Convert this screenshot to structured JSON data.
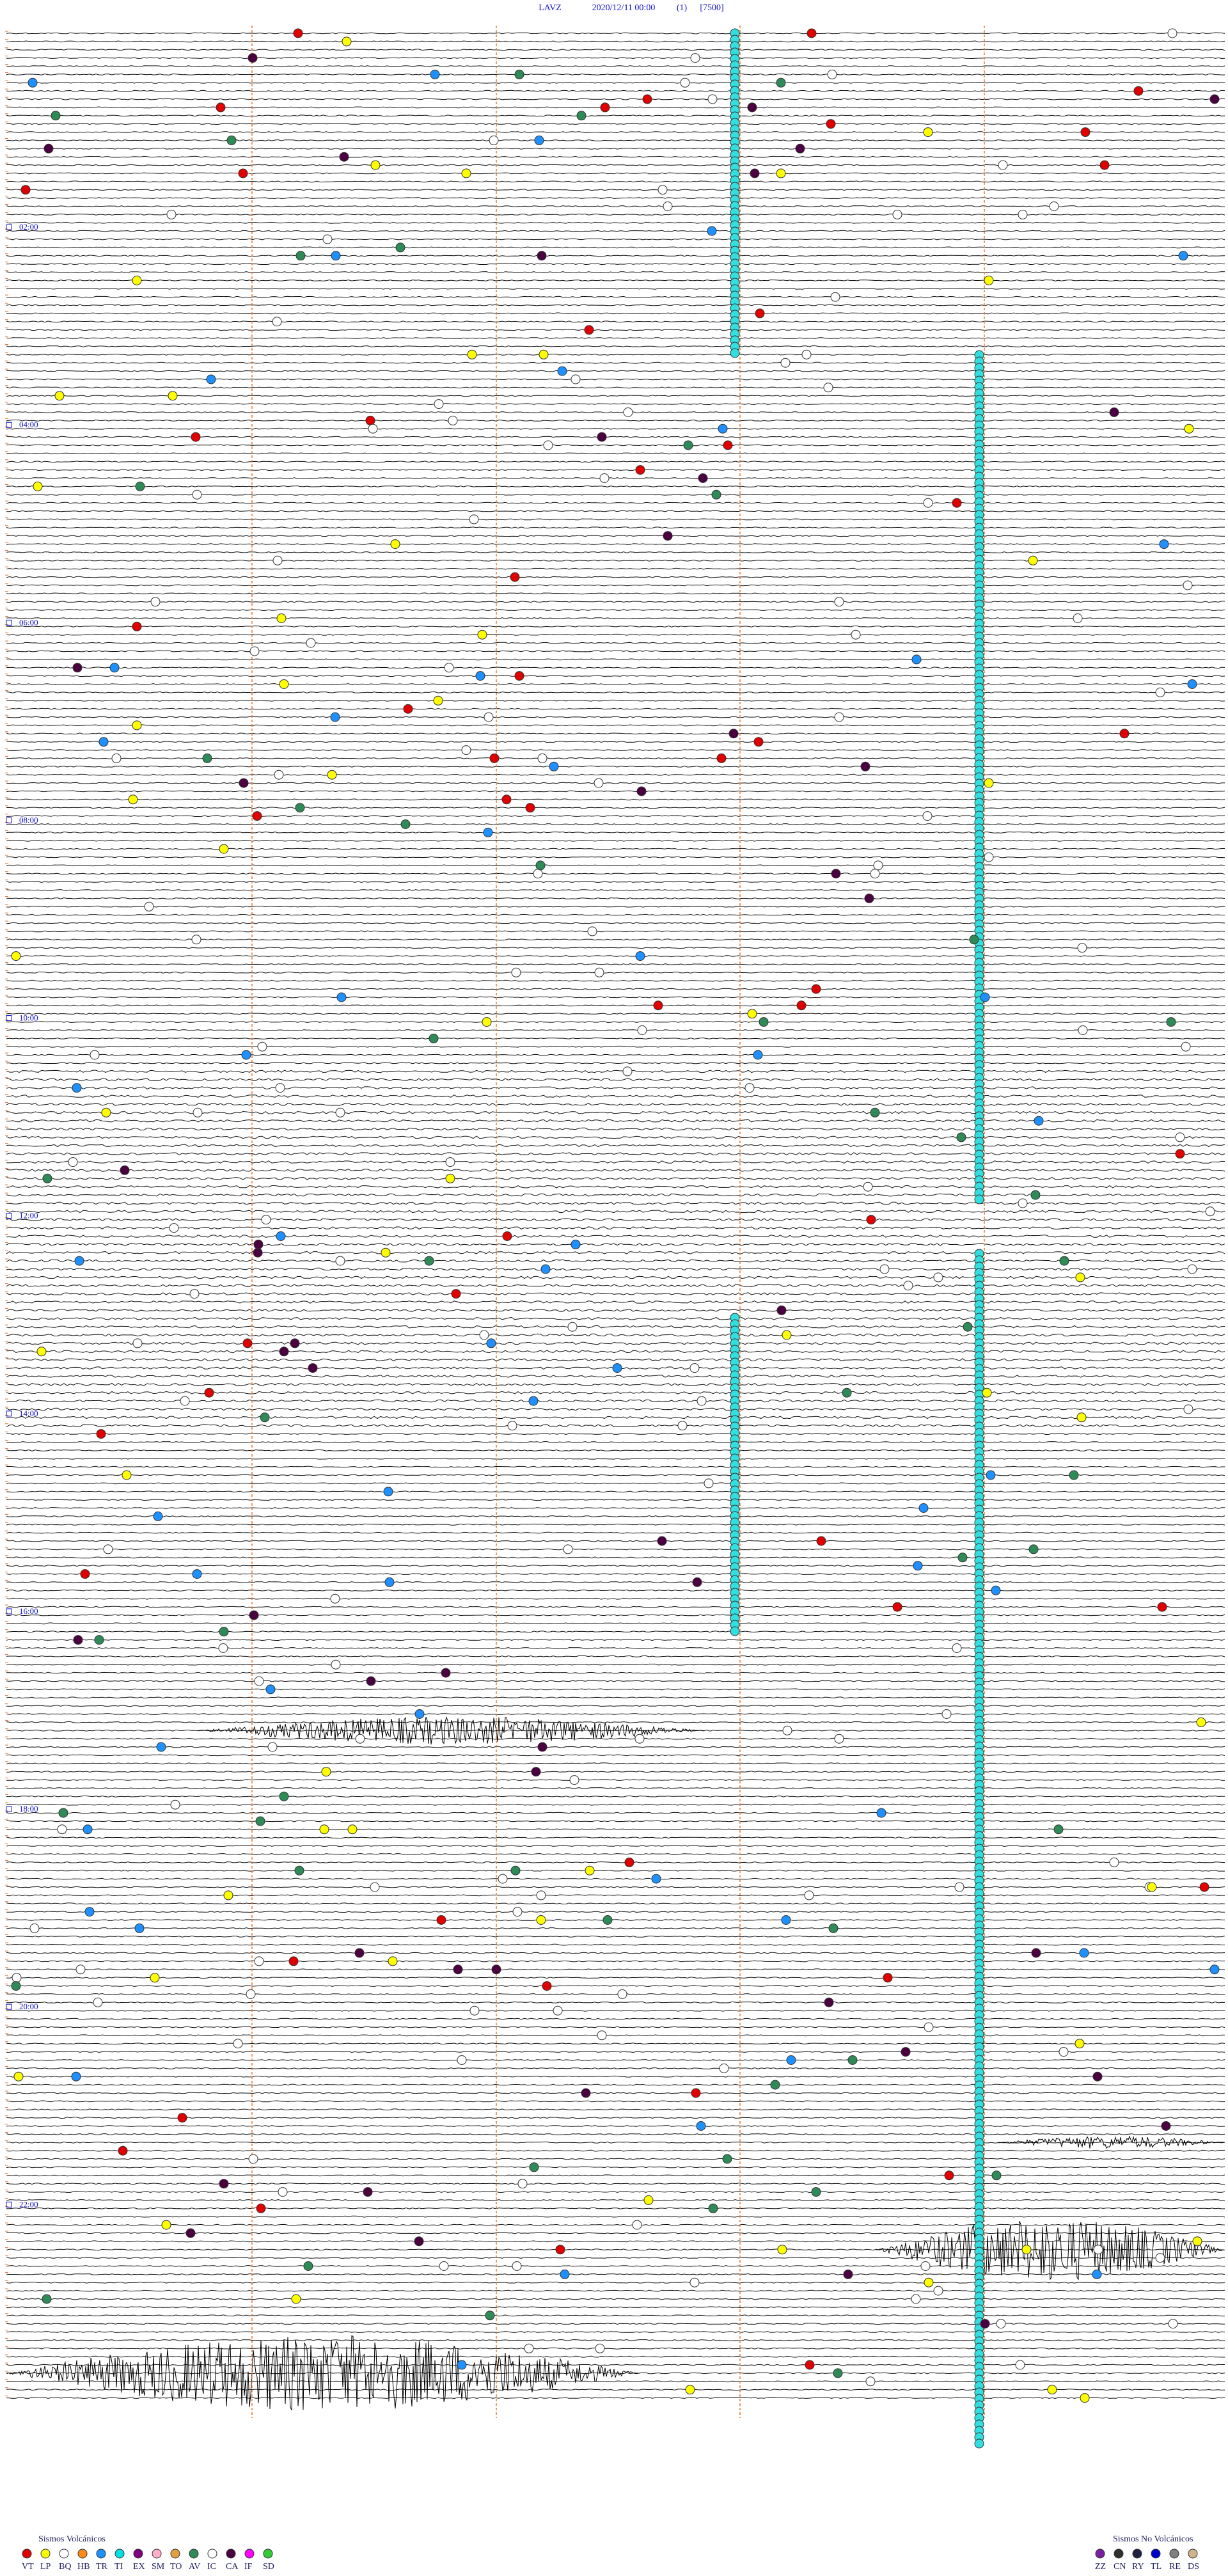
{
  "header": {
    "station": "LAVZ",
    "datetime": "2020/12/11 00:00",
    "mode": "(1)",
    "scale": "[7500]"
  },
  "hour_labels": [
    "02:00",
    "04:00",
    "06:00",
    "08:00",
    "10:00",
    "12:00",
    "14:00",
    "16:00",
    "18:00",
    "20:00",
    "22:00"
  ],
  "legend_volcanic": {
    "title": "Sismos Volcánicos",
    "items": [
      {
        "code": "VT",
        "color": "#e00000"
      },
      {
        "code": "LP",
        "color": "#ffff00"
      },
      {
        "code": "BQ",
        "color": "#ffffff"
      },
      {
        "code": "HB",
        "color": "#ff8c1a"
      },
      {
        "code": "TR",
        "color": "#1e90ff"
      },
      {
        "code": "TI",
        "color": "#00e0e0"
      },
      {
        "code": "EX",
        "color": "#800080"
      },
      {
        "code": "SM",
        "color": "#ffb0c8"
      },
      {
        "code": "TO",
        "color": "#e0a040"
      },
      {
        "code": "AV",
        "color": "#2e8b57"
      },
      {
        "code": "IC",
        "color": "#ffffff"
      },
      {
        "code": "CA",
        "color": "#4b0040"
      },
      {
        "code": "IF",
        "color": "#ff00ff"
      },
      {
        "code": "SD",
        "color": "#32cd32"
      }
    ]
  },
  "legend_non_volcanic": {
    "title": "Sismos No Volcánicos",
    "items": [
      {
        "code": "ZZ",
        "color": "#7b1fa2"
      },
      {
        "code": "CN",
        "color": "#303030"
      },
      {
        "code": "RY",
        "color": "#202040"
      },
      {
        "code": "TL",
        "color": "#0000cc"
      },
      {
        "code": "RE",
        "color": "#808080"
      },
      {
        "code": "DS",
        "color": "#d2b48c"
      }
    ]
  }
}
